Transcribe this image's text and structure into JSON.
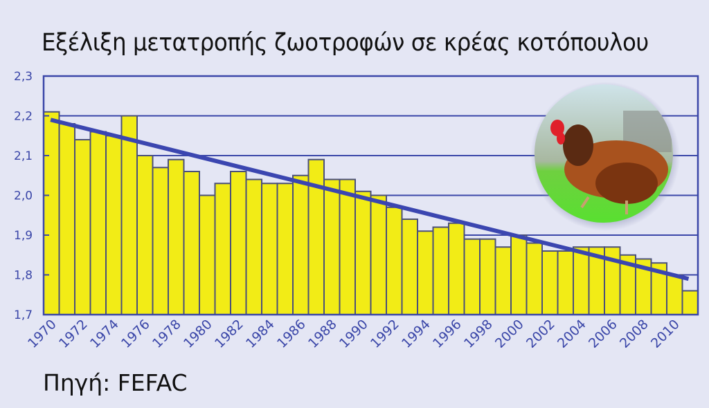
{
  "title": "Εξέλιξη μετατροπής ζωοτροφών σε κρέας κοτόπουλου",
  "source": "Πηγή: FEFAC",
  "colors": {
    "background": "#e4e6f4",
    "bar_fill": "#f2ec16",
    "bar_stroke": "#4a4f7a",
    "axis": "#3a46a8",
    "trend": "#3b46b0"
  },
  "image": {
    "name": "hen-photo",
    "description": "round photo of a brown hen walking on grass"
  },
  "chart_data": {
    "type": "bar",
    "title": "Εξέλιξη μετατροπής ζωοτροφών σε κρέας κοτόπουλου",
    "xlabel": "",
    "ylabel": "",
    "ylim": [
      1.7,
      2.3
    ],
    "yticks": [
      "1,7",
      "1,8",
      "1,9",
      "2,0",
      "2,1",
      "2,2",
      "2,3"
    ],
    "xtick_labels": [
      "1970",
      "1972",
      "1974",
      "1976",
      "1978",
      "1980",
      "1982",
      "1984",
      "1986",
      "1988",
      "1990",
      "1992",
      "1994",
      "1996",
      "1998",
      "2000",
      "2002",
      "2004",
      "2006",
      "2008",
      "2010"
    ],
    "grid": "horizontal",
    "categories": [
      1970,
      1971,
      1972,
      1973,
      1974,
      1975,
      1976,
      1977,
      1978,
      1979,
      1980,
      1981,
      1982,
      1983,
      1984,
      1985,
      1986,
      1987,
      1988,
      1989,
      1990,
      1991,
      1992,
      1993,
      1994,
      1995,
      1996,
      1997,
      1998,
      1999,
      2000,
      2001,
      2002,
      2003,
      2004,
      2005,
      2006,
      2007,
      2008,
      2009,
      2010,
      2011
    ],
    "values": [
      2.21,
      2.18,
      2.14,
      2.16,
      2.15,
      2.2,
      2.1,
      2.07,
      2.09,
      2.06,
      2.0,
      2.03,
      2.06,
      2.04,
      2.03,
      2.03,
      2.05,
      2.09,
      2.04,
      2.04,
      2.01,
      2.0,
      1.97,
      1.94,
      1.91,
      1.92,
      1.93,
      1.89,
      1.89,
      1.87,
      1.9,
      1.88,
      1.86,
      1.86,
      1.87,
      1.87,
      1.87,
      1.85,
      1.84,
      1.83,
      1.8,
      1.76
    ],
    "trend_line": {
      "type": "line",
      "start": {
        "year": 1970,
        "value": 2.19
      },
      "end": {
        "year": 2011,
        "value": 1.79
      }
    },
    "source": "Πηγή: FEFAC"
  }
}
